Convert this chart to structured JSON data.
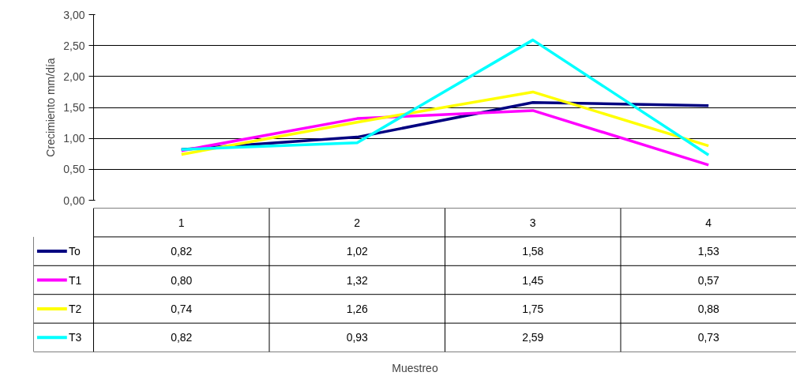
{
  "chart_data": {
    "type": "line",
    "ylabel": "Crecimiento mm/día",
    "annotations": [
      "Muestreo"
    ],
    "categories": [
      "1",
      "2",
      "3",
      "4"
    ],
    "series": [
      {
        "name": "To",
        "color": "#000080",
        "values": [
          0.82,
          1.02,
          1.58,
          1.53
        ],
        "value_labels": [
          "0,82",
          "1,02",
          "1,58",
          "1,53"
        ]
      },
      {
        "name": "T1",
        "color": "#ff00ff",
        "values": [
          0.8,
          1.32,
          1.45,
          0.57
        ],
        "value_labels": [
          "0,80",
          "1,32",
          "1,45",
          "0,57"
        ]
      },
      {
        "name": "T2",
        "color": "#ffff00",
        "values": [
          0.74,
          1.26,
          1.75,
          0.88
        ],
        "value_labels": [
          "0,74",
          "1,26",
          "1,75",
          "0,88"
        ]
      },
      {
        "name": "T3",
        "color": "#00ffff",
        "values": [
          0.82,
          0.93,
          2.59,
          0.73
        ],
        "value_labels": [
          "0,82",
          "0,93",
          "2,59",
          "0,73"
        ]
      }
    ],
    "ylim": [
      0,
      3
    ],
    "yticks": [
      {
        "value": 0,
        "label": "0,00"
      },
      {
        "value": 0.5,
        "label": "0,50"
      },
      {
        "value": 1,
        "label": "1,00"
      },
      {
        "value": 1.5,
        "label": "1,50"
      },
      {
        "value": 2,
        "label": "2,00"
      },
      {
        "value": 2.5,
        "label": "2,50"
      },
      {
        "value": 3,
        "label": "3,00"
      }
    ],
    "grid": "y",
    "legend": "bottom",
    "marker": "none",
    "line_style": "solid"
  }
}
